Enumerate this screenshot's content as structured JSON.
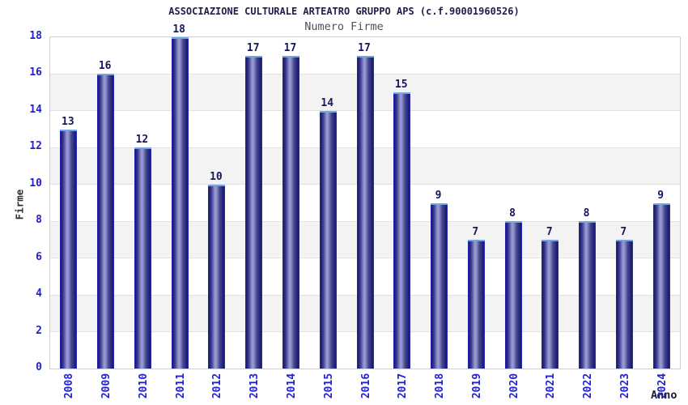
{
  "chart_data": {
    "type": "bar",
    "title": "ASSOCIAZIONE CULTURALE ARTEATRO GRUPPO APS (c.f.90001960526)",
    "subtitle": "Numero Firme",
    "xlabel": "Anno",
    "ylabel": "Firme",
    "categories": [
      "2008",
      "2009",
      "2010",
      "2011",
      "2012",
      "2013",
      "2014",
      "2015",
      "2016",
      "2017",
      "2018",
      "2019",
      "2020",
      "2021",
      "2022",
      "2023",
      "2024"
    ],
    "values": [
      13,
      16,
      12,
      18,
      10,
      17,
      17,
      14,
      17,
      15,
      9,
      7,
      8,
      7,
      8,
      7,
      9
    ],
    "ylim": [
      0,
      18
    ],
    "ytick_step": 2,
    "yticks": [
      0,
      2,
      4,
      6,
      8,
      10,
      12,
      14,
      16,
      18
    ],
    "legend": "none",
    "grid": "horizontal gridlines every 2 units with alternating white/gray bands",
    "colors": {
      "bar_dark": "#1a1a6f",
      "bar_highlight": "#9c9ed2",
      "bar_edge_blue": "#2b2bd9",
      "bar_top_cap": "#70a6e4",
      "axis_tick_label": "#2222cc",
      "value_label": "#17175c",
      "title": "#1e1e4e",
      "subtitle": "#50505c",
      "band_gray": "#f3f3f3",
      "gridline": "#e1e1e1",
      "plot_border": "#d0d0d0",
      "background": "#ffffff"
    }
  }
}
